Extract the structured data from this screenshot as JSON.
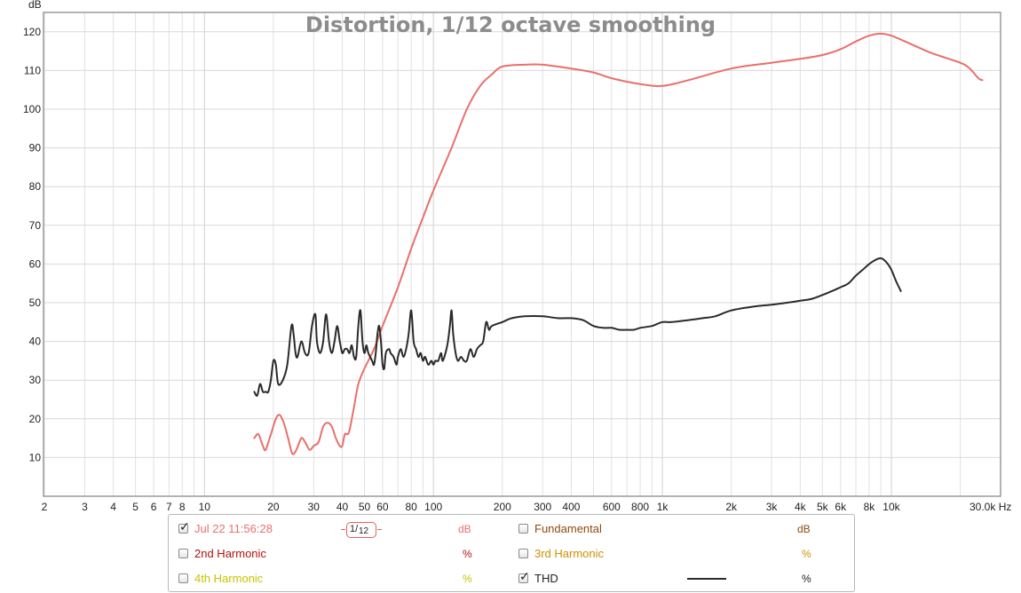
{
  "chart_data": {
    "type": "line",
    "title": "Distortion, 1/12 octave smoothing",
    "ylabel": "dB",
    "x_unit": "Hz",
    "x_scale": "log",
    "xlim": [
      2,
      30000
    ],
    "ylim": [
      0,
      125
    ],
    "grid": true,
    "x_tick_labels": [
      {
        "value": 2,
        "label": "2"
      },
      {
        "value": 3,
        "label": "3"
      },
      {
        "value": 4,
        "label": "4"
      },
      {
        "value": 5,
        "label": "5"
      },
      {
        "value": 6,
        "label": "6"
      },
      {
        "value": 7,
        "label": "7"
      },
      {
        "value": 8,
        "label": "8"
      },
      {
        "value": 10,
        "label": "10"
      },
      {
        "value": 20,
        "label": "20"
      },
      {
        "value": 30,
        "label": "30"
      },
      {
        "value": 40,
        "label": "40"
      },
      {
        "value": 50,
        "label": "50"
      },
      {
        "value": 60,
        "label": "60"
      },
      {
        "value": 80,
        "label": "80"
      },
      {
        "value": 100,
        "label": "100"
      },
      {
        "value": 200,
        "label": "200"
      },
      {
        "value": 300,
        "label": "300"
      },
      {
        "value": 400,
        "label": "400"
      },
      {
        "value": 600,
        "label": "600"
      },
      {
        "value": 800,
        "label": "800"
      },
      {
        "value": 1000,
        "label": "1k"
      },
      {
        "value": 2000,
        "label": "2k"
      },
      {
        "value": 3000,
        "label": "3k"
      },
      {
        "value": 4000,
        "label": "4k"
      },
      {
        "value": 5000,
        "label": "5k"
      },
      {
        "value": 6000,
        "label": "6k"
      },
      {
        "value": 8000,
        "label": "8k"
      },
      {
        "value": 10000,
        "label": "10k"
      },
      {
        "value": 30000,
        "label": "30.0k Hz"
      }
    ],
    "y_ticks": [
      10,
      20,
      30,
      40,
      50,
      60,
      70,
      80,
      90,
      100,
      110,
      120
    ],
    "series": [
      {
        "name": "Jul 22 11:56:28",
        "color": "#e8706b",
        "points": [
          [
            16.5,
            15
          ],
          [
            17.2,
            16
          ],
          [
            18.0,
            13
          ],
          [
            18.5,
            12
          ],
          [
            19.5,
            16
          ],
          [
            20.5,
            20
          ],
          [
            21.3,
            21
          ],
          [
            22.2,
            19
          ],
          [
            23.2,
            15
          ],
          [
            24.2,
            11
          ],
          [
            25.2,
            12
          ],
          [
            26.5,
            15
          ],
          [
            27.5,
            14
          ],
          [
            28.8,
            12
          ],
          [
            30.0,
            13
          ],
          [
            31.5,
            14
          ],
          [
            33.0,
            18
          ],
          [
            34.5,
            19
          ],
          [
            36.0,
            18
          ],
          [
            37.5,
            15
          ],
          [
            39.0,
            13
          ],
          [
            40.0,
            13
          ],
          [
            41.0,
            16
          ],
          [
            42.0,
            16
          ],
          [
            43.0,
            17
          ],
          [
            45.0,
            23
          ],
          [
            47.0,
            29
          ],
          [
            50.0,
            33
          ],
          [
            55.0,
            38
          ],
          [
            60.0,
            44
          ],
          [
            70.0,
            54
          ],
          [
            80.0,
            64
          ],
          [
            90.0,
            72
          ],
          [
            100.0,
            79
          ],
          [
            120.0,
            90
          ],
          [
            140.0,
            100
          ],
          [
            160.0,
            106
          ],
          [
            180.0,
            109
          ],
          [
            200.0,
            111
          ],
          [
            250.0,
            111.5
          ],
          [
            300.0,
            111.5
          ],
          [
            400.0,
            110.5
          ],
          [
            500.0,
            109.5
          ],
          [
            600.0,
            108
          ],
          [
            800.0,
            106.5
          ],
          [
            1000.0,
            106
          ],
          [
            1300.0,
            107.5
          ],
          [
            2000.0,
            110.5
          ],
          [
            3000.0,
            112
          ],
          [
            4000.0,
            113
          ],
          [
            5000.0,
            114
          ],
          [
            6000.0,
            115.5
          ],
          [
            7000.0,
            117.5
          ],
          [
            8000.0,
            119
          ],
          [
            9000.0,
            119.5
          ],
          [
            10000.0,
            119
          ],
          [
            12000.0,
            117
          ],
          [
            15000.0,
            114.5
          ],
          [
            20000.0,
            112
          ],
          [
            22000.0,
            110.5
          ],
          [
            24000.0,
            108
          ],
          [
            25000.0,
            107.5
          ]
        ]
      },
      {
        "name": "THD",
        "color": "#2a2a2a",
        "points": [
          [
            16.5,
            27
          ],
          [
            17.0,
            26
          ],
          [
            17.5,
            29
          ],
          [
            18.0,
            27
          ],
          [
            18.5,
            27
          ],
          [
            19.0,
            27
          ],
          [
            19.5,
            30
          ],
          [
            20.0,
            35
          ],
          [
            20.5,
            34
          ],
          [
            21.0,
            29
          ],
          [
            22.0,
            30
          ],
          [
            23.0,
            34
          ],
          [
            24.0,
            44
          ],
          [
            24.5,
            42
          ],
          [
            25.0,
            37
          ],
          [
            25.5,
            36
          ],
          [
            26.5,
            40
          ],
          [
            27.5,
            37
          ],
          [
            28.5,
            37
          ],
          [
            29.5,
            44
          ],
          [
            30.5,
            47
          ],
          [
            31.0,
            40
          ],
          [
            32.0,
            37
          ],
          [
            33.0,
            40
          ],
          [
            34.0,
            47
          ],
          [
            35.0,
            40
          ],
          [
            36.0,
            37
          ],
          [
            37.0,
            40
          ],
          [
            38.0,
            44
          ],
          [
            39.0,
            40
          ],
          [
            40.0,
            37
          ],
          [
            41.0,
            38
          ],
          [
            42.0,
            38
          ],
          [
            43.0,
            37
          ],
          [
            44.0,
            39
          ],
          [
            45.0,
            36
          ],
          [
            46.0,
            36
          ],
          [
            47.0,
            44
          ],
          [
            48.0,
            48
          ],
          [
            49.0,
            40
          ],
          [
            50.0,
            37
          ],
          [
            51.0,
            39
          ],
          [
            52.0,
            37
          ],
          [
            54.0,
            35
          ],
          [
            55.0,
            34
          ],
          [
            56.0,
            37
          ],
          [
            57.0,
            42
          ],
          [
            58.0,
            44
          ],
          [
            59.0,
            40
          ],
          [
            60.0,
            34
          ],
          [
            61.0,
            33
          ],
          [
            62.0,
            37
          ],
          [
            64.0,
            38
          ],
          [
            65.0,
            37
          ],
          [
            67.0,
            36
          ],
          [
            69.0,
            34
          ],
          [
            70.0,
            36
          ],
          [
            72.0,
            38
          ],
          [
            74.0,
            36
          ],
          [
            76.0,
            38
          ],
          [
            78.0,
            42
          ],
          [
            80.0,
            48
          ],
          [
            82.0,
            40
          ],
          [
            84.0,
            38
          ],
          [
            86.0,
            36
          ],
          [
            88.0,
            37
          ],
          [
            90.0,
            35
          ],
          [
            92.0,
            36
          ],
          [
            95.0,
            34
          ],
          [
            98.0,
            35
          ],
          [
            100.0,
            34
          ],
          [
            102.0,
            35
          ],
          [
            105.0,
            35
          ],
          [
            108.0,
            37
          ],
          [
            110.0,
            35
          ],
          [
            115.0,
            39
          ],
          [
            118.0,
            44
          ],
          [
            120.0,
            48
          ],
          [
            122.0,
            42
          ],
          [
            125.0,
            37
          ],
          [
            128.0,
            35
          ],
          [
            132.0,
            36
          ],
          [
            136.0,
            35
          ],
          [
            140.0,
            35
          ],
          [
            145.0,
            38
          ],
          [
            150.0,
            36
          ],
          [
            155.0,
            38
          ],
          [
            160.0,
            39
          ],
          [
            165.0,
            40
          ],
          [
            170.0,
            45
          ],
          [
            175.0,
            43
          ],
          [
            180.0,
            44
          ],
          [
            200.0,
            45
          ],
          [
            220.0,
            46
          ],
          [
            250.0,
            46.5
          ],
          [
            300.0,
            46.5
          ],
          [
            350.0,
            46
          ],
          [
            400.0,
            46
          ],
          [
            450.0,
            45.5
          ],
          [
            500.0,
            44
          ],
          [
            550.0,
            43.5
          ],
          [
            600.0,
            43.5
          ],
          [
            650.0,
            43
          ],
          [
            700.0,
            43
          ],
          [
            750.0,
            43
          ],
          [
            800.0,
            43.5
          ],
          [
            900.0,
            44
          ],
          [
            1000.0,
            45
          ],
          [
            1100.0,
            45
          ],
          [
            1300.0,
            45.5
          ],
          [
            1500.0,
            46
          ],
          [
            1700.0,
            46.5
          ],
          [
            2000.0,
            48
          ],
          [
            2500.0,
            49
          ],
          [
            3000.0,
            49.5
          ],
          [
            3500.0,
            50
          ],
          [
            4000.0,
            50.5
          ],
          [
            4500.0,
            51
          ],
          [
            5000.0,
            52
          ],
          [
            5500.0,
            53
          ],
          [
            6000.0,
            54
          ],
          [
            6500.0,
            55
          ],
          [
            7000.0,
            57
          ],
          [
            7500.0,
            58.5
          ],
          [
            8000.0,
            60
          ],
          [
            8500.0,
            61
          ],
          [
            9000.0,
            61.5
          ],
          [
            9500.0,
            60.5
          ],
          [
            10000.0,
            58.5
          ],
          [
            10500.0,
            55.5
          ],
          [
            11000.0,
            53
          ]
        ]
      }
    ]
  },
  "legend": {
    "measurement": {
      "label": "Jul 22 11:56:28",
      "checked": true,
      "color": "#e8706b",
      "unit": "dB"
    },
    "smoothing": {
      "numerator": "1/",
      "denominator": "12"
    },
    "fundamental": {
      "label": "Fundamental",
      "checked": false,
      "color": "#8b4a12",
      "unit": "dB"
    },
    "h2": {
      "label": "2nd Harmonic",
      "checked": false,
      "color": "#b51111",
      "unit": "%"
    },
    "h3": {
      "label": "3rd Harmonic",
      "checked": false,
      "color": "#d08f00",
      "unit": "%"
    },
    "h4": {
      "label": "4th Harmonic",
      "checked": false,
      "color": "#c5c500",
      "unit": "%"
    },
    "thd": {
      "label": "THD",
      "checked": true,
      "color": "#2a2a2a",
      "unit": "%"
    }
  }
}
